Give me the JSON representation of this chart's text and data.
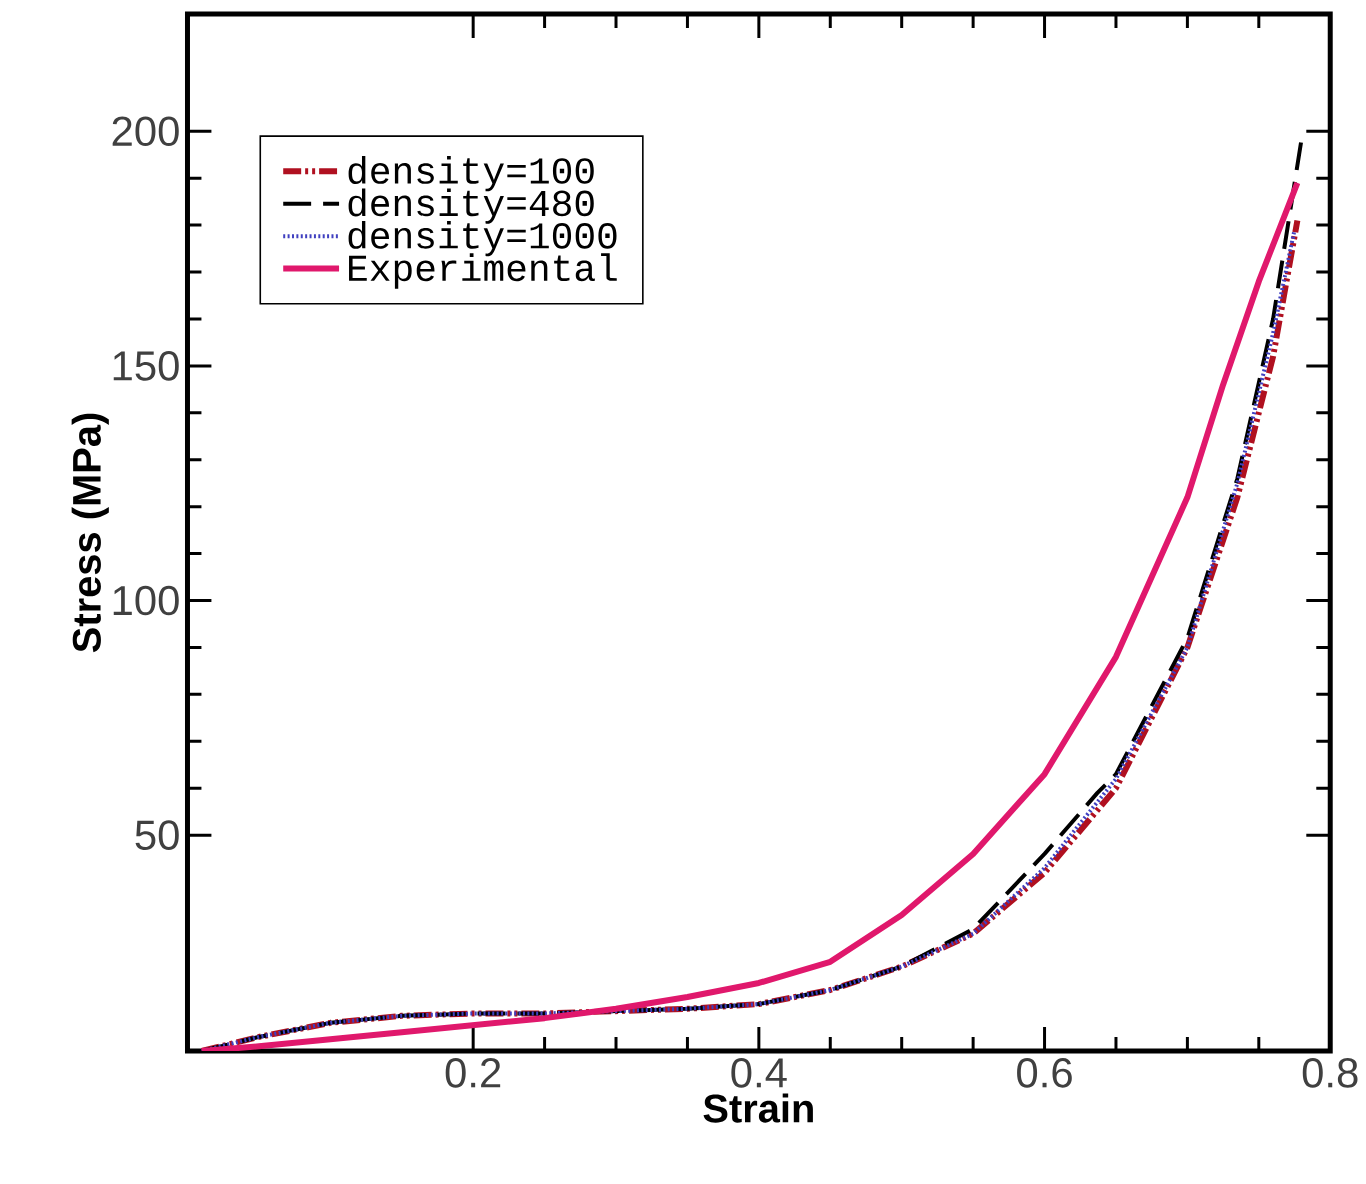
{
  "chart_data": {
    "type": "line",
    "xlabel": "Strain",
    "ylabel": "Stress (MPa)",
    "xlim": [
      0,
      0.8
    ],
    "ylim": [
      4,
      225
    ],
    "xticks": [
      0.2,
      0.4,
      0.6,
      0.8
    ],
    "yticks": [
      50,
      100,
      150,
      200
    ],
    "legend": "top left",
    "marker": "none",
    "series": [
      {
        "name": "density=100",
        "color": "#b01020",
        "line_style": "dashdotted",
        "x": [
          0.01,
          0.05,
          0.1,
          0.15,
          0.2,
          0.25,
          0.3,
          0.35,
          0.4,
          0.45,
          0.5,
          0.55,
          0.6,
          0.65,
          0.7,
          0.735,
          0.76,
          0.777
        ],
        "values": [
          4,
          7,
          10,
          11.5,
          12,
          12,
          12.5,
          13,
          14,
          17,
          22,
          29,
          42,
          60,
          90,
          122,
          152,
          181
        ]
      },
      {
        "name": "density=480",
        "color": "#000000",
        "line_style": "dashed",
        "x": [
          0.01,
          0.05,
          0.1,
          0.15,
          0.2,
          0.25,
          0.3,
          0.35,
          0.4,
          0.45,
          0.5,
          0.55,
          0.6,
          0.637,
          0.65,
          0.7,
          0.735,
          0.76,
          0.78
        ],
        "values": [
          4,
          7,
          10,
          11.5,
          12,
          12,
          12.5,
          13,
          14,
          17,
          22,
          30,
          46,
          59,
          63,
          92,
          126,
          160,
          198.5
        ]
      },
      {
        "name": "density=1000",
        "color": "#4040c0",
        "line_style": "dotted",
        "x": [
          0.01,
          0.05,
          0.1,
          0.15,
          0.2,
          0.25,
          0.3,
          0.35,
          0.4,
          0.45,
          0.5,
          0.55,
          0.6,
          0.65,
          0.7,
          0.735,
          0.76,
          0.775
        ],
        "values": [
          4,
          7,
          10,
          11.5,
          12,
          12,
          12.5,
          13,
          14,
          17,
          22,
          29,
          43,
          62,
          90,
          125,
          157,
          179
        ]
      },
      {
        "name": "Experimental",
        "color": "#e0186c",
        "line_style": "solid",
        "x": [
          0.01,
          0.05,
          0.1,
          0.15,
          0.2,
          0.25,
          0.3,
          0.35,
          0.4,
          0.45,
          0.5,
          0.55,
          0.6,
          0.65,
          0.7,
          0.725,
          0.75,
          0.777
        ],
        "values": [
          4,
          5,
          6.5,
          8,
          9.5,
          11,
          13,
          15.5,
          18.5,
          23,
          33,
          46,
          63,
          88,
          122,
          146,
          168,
          189
        ]
      }
    ]
  }
}
